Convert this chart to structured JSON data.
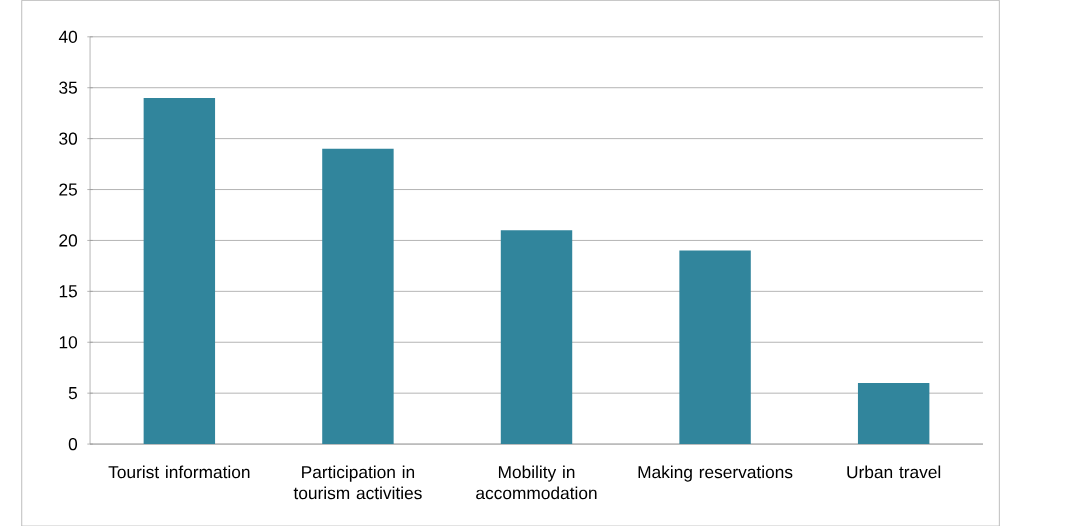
{
  "chart_data": {
    "type": "bar",
    "categories": [
      "Tourist information",
      "Participation in tourism activities",
      "Mobility in accommodation",
      "Making reservations",
      "Urban travel"
    ],
    "values": [
      34,
      29,
      21,
      19,
      6
    ],
    "color": "#31859c",
    "ylim": [
      0,
      40
    ],
    "yticks": [
      0,
      5,
      10,
      15,
      20,
      25,
      30,
      35,
      40
    ],
    "grid": "y"
  }
}
